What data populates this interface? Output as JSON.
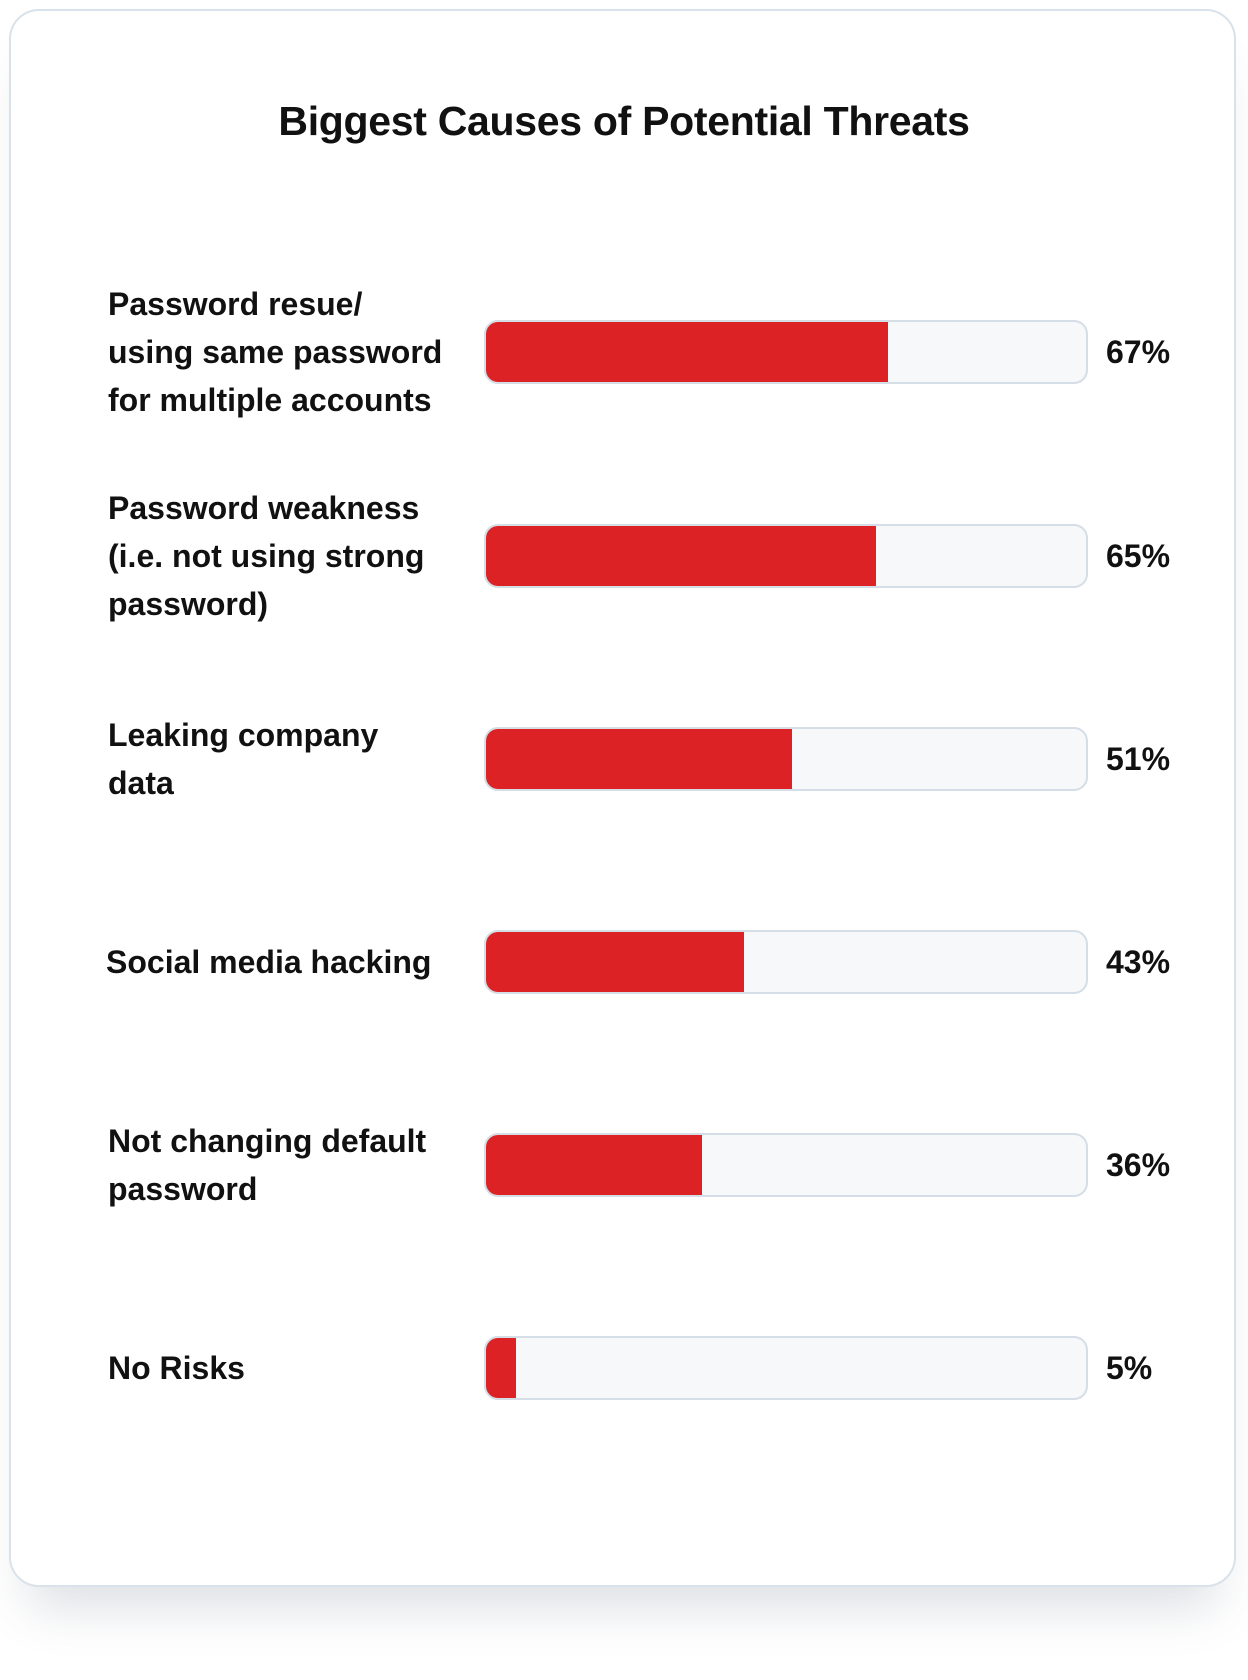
{
  "chart_data": {
    "type": "bar",
    "orientation": "horizontal",
    "title": "Biggest Causes of Potential Threats",
    "xlim": [
      0,
      100
    ],
    "unit": "%",
    "bar_color": "#dc2224",
    "track_color": "#f6f8fa",
    "categories": [
      "Password resue/ using same password for multiple accounts",
      "Password weakness (i.e. not using strong password)",
      "Leaking company data",
      "Social media hacking",
      "Not changing default password",
      "No Risks"
    ],
    "category_lines": [
      [
        "Password resue/",
        "using same password",
        "for multiple accounts"
      ],
      [
        "Password weakness",
        "(i.e. not using strong",
        "password)"
      ],
      [
        "Leaking company",
        "data"
      ],
      [
        "Social media hacking"
      ],
      [
        "Not changing default",
        "password"
      ],
      [
        "No Risks"
      ]
    ],
    "values": [
      67,
      65,
      51,
      43,
      36,
      5
    ],
    "value_labels": [
      "67%",
      "65%",
      "51%",
      "43%",
      "36%",
      "5%"
    ]
  }
}
